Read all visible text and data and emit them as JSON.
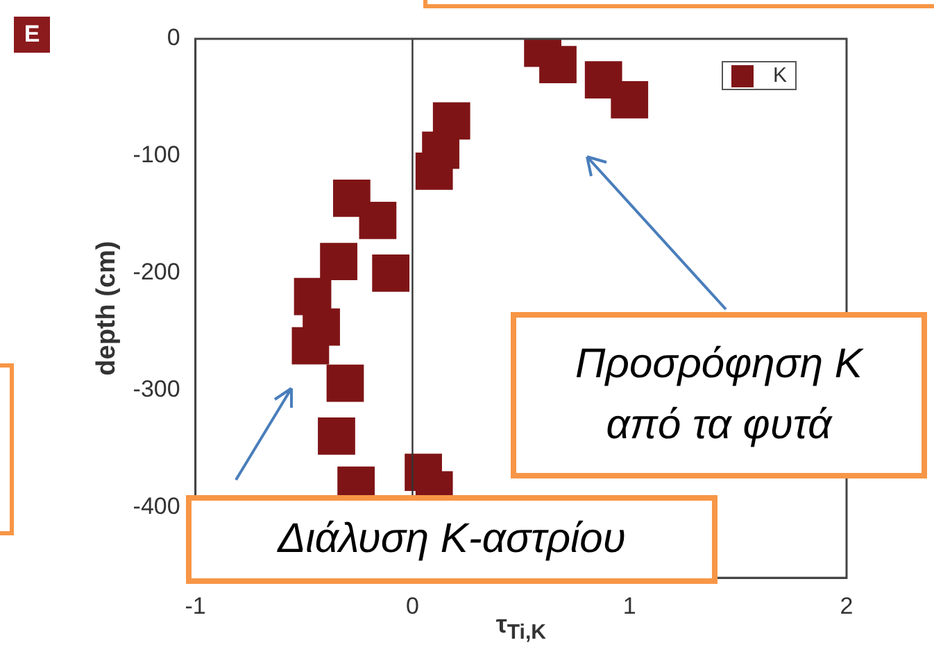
{
  "chart_data": {
    "type": "scatter",
    "xlabel": "τ$_{Ti,K}$",
    "ylabel": "depth (cm)",
    "series": [
      {
        "name": "K",
        "color": "#7f1416",
        "x": [
          0.6,
          0.67,
          0.88,
          1.0,
          0.18,
          0.13,
          0.1,
          -0.28,
          -0.16,
          -0.34,
          -0.1,
          -0.46,
          -0.42,
          -0.47,
          -0.31,
          -0.35,
          0.05,
          0.1,
          -0.26
        ],
        "values": [
          -8,
          -22,
          -35,
          -52,
          -70,
          -95,
          -113,
          -136,
          -155,
          -190,
          -200,
          -220,
          -246,
          -262,
          -294,
          -339,
          -370,
          -385,
          -381
        ]
      }
    ],
    "xlim": [
      -1,
      2
    ],
    "xticks": [
      -1,
      0,
      1,
      2
    ],
    "ylim": [
      -460,
      0
    ],
    "yticks": [
      0,
      -100,
      -200,
      -300,
      -400
    ],
    "ref_lines": [
      {
        "axis": "x",
        "value": 0,
        "color": "#333333"
      }
    ],
    "grid": false,
    "legend": "top right",
    "marker": "square",
    "annotations": [
      "E",
      "Προσρόφηση K από τα φυτά",
      "Διάλυση K-αστρίου"
    ]
  }
}
